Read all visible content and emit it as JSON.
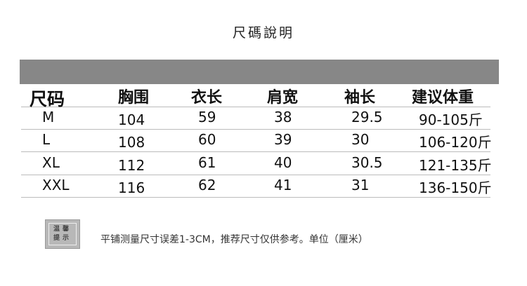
{
  "title": "尺碼說明",
  "table": {
    "headers": [
      "尺码",
      "胸围",
      "衣长",
      "肩宽",
      "袖长",
      "建议体重"
    ],
    "rows": [
      [
        "M",
        "104",
        "59",
        "38",
        "29.5",
        "90-105斤"
      ],
      [
        "L",
        "108",
        "60",
        "39",
        "30",
        "106-120斤"
      ],
      [
        "XL",
        "112",
        "61",
        "40",
        "30.5",
        "121-135斤"
      ],
      [
        "XXL",
        "116",
        "62",
        "41",
        "31",
        "136-150斤"
      ]
    ]
  },
  "note": {
    "badge_line1": "温馨",
    "badge_line2": "提示",
    "text": "平铺测量尺寸误差1-3CM，推荐尺寸仅供参考。单位（厘米）"
  }
}
